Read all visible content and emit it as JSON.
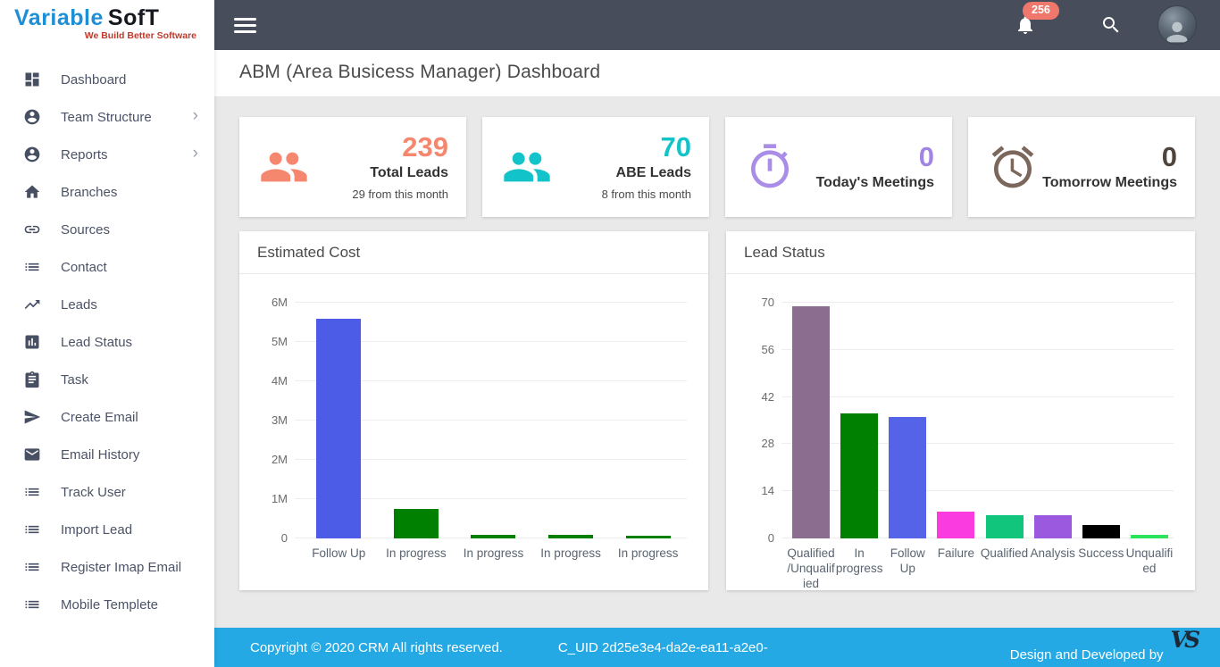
{
  "brand": {
    "name_part1": "Variable",
    "name_part2": "SofT",
    "tagline": "We Build Better Software"
  },
  "header": {
    "notification_count": "256"
  },
  "page": {
    "title": "ABM (Area Busicess Manager) Dashboard"
  },
  "sidebar": {
    "items": [
      {
        "label": "Dashboard",
        "icon": "dashboard-grid-icon",
        "has_submenu": false
      },
      {
        "label": "Team Structure",
        "icon": "person-circle-icon",
        "has_submenu": true
      },
      {
        "label": "Reports",
        "icon": "person-circle-icon",
        "has_submenu": true
      },
      {
        "label": "Branches",
        "icon": "home-icon",
        "has_submenu": false
      },
      {
        "label": "Sources",
        "icon": "link-icon",
        "has_submenu": false
      },
      {
        "label": "Contact",
        "icon": "list-icon",
        "has_submenu": false
      },
      {
        "label": "Leads",
        "icon": "trending-up-icon",
        "has_submenu": false
      },
      {
        "label": "Lead Status",
        "icon": "bar-chart-icon",
        "has_submenu": false
      },
      {
        "label": "Task",
        "icon": "clipboard-icon",
        "has_submenu": false
      },
      {
        "label": "Create Email",
        "icon": "send-icon",
        "has_submenu": false
      },
      {
        "label": "Email History",
        "icon": "envelope-icon",
        "has_submenu": false
      },
      {
        "label": "Track User",
        "icon": "list-icon",
        "has_submenu": false
      },
      {
        "label": "Import Lead",
        "icon": "list-icon",
        "has_submenu": false
      },
      {
        "label": "Register Imap Email",
        "icon": "list-icon",
        "has_submenu": false
      },
      {
        "label": "Mobile Templete",
        "icon": "list-icon",
        "has_submenu": false
      }
    ]
  },
  "stat_cards": [
    {
      "value": "239",
      "label": "Total Leads",
      "sublabel": "29 from this month",
      "icon": "people-icon",
      "icon_color": "#f5876f",
      "value_color": "#f5876f"
    },
    {
      "value": "70",
      "label": "ABE Leads",
      "sublabel": "8 from this month",
      "icon": "people-icon",
      "icon_color": "#13c3ca",
      "value_color": "#13c3ca"
    },
    {
      "value": "0",
      "label": "Today's Meetings",
      "sublabel": "",
      "icon": "stopwatch-icon",
      "icon_color": "#a98de7",
      "value_color": "#a284e3"
    },
    {
      "value": "0",
      "label": "Tomorrow Meetings",
      "sublabel": "",
      "icon": "alarm-clock-icon",
      "icon_color": "#7b675b",
      "value_color": "#4e443c"
    }
  ],
  "chart_data": [
    {
      "type": "bar",
      "title": "Estimated Cost",
      "categories": [
        "Follow Up",
        "In progress",
        "In progress",
        "In progress",
        "In progress"
      ],
      "values": [
        5600000,
        750000,
        80000,
        90000,
        40000
      ],
      "bar_colors": [
        "#4d5ce6",
        "#008000",
        "#008000",
        "#008000",
        "#008000"
      ],
      "xlabel": "",
      "ylabel": "",
      "ylim": [
        0,
        6000000
      ],
      "ytick_step": 1000000,
      "ytick_labels": [
        "0",
        "1M",
        "2M",
        "3M",
        "4M",
        "5M",
        "6M"
      ],
      "grid": true,
      "legend": "none"
    },
    {
      "type": "bar",
      "title": "Lead Status",
      "categories": [
        "Qualified/Unqualified",
        "In progress",
        "Follow Up",
        "Failure",
        "Qualified",
        "Analysis",
        "Success",
        "Unqualified"
      ],
      "values": [
        69,
        37,
        36,
        8,
        7,
        7,
        4,
        1
      ],
      "bar_colors": [
        "#8b6d8f",
        "#008000",
        "#5463e8",
        "#fa3be0",
        "#12c57c",
        "#9b59e0",
        "#000000",
        "#2ce45c"
      ],
      "xlabel": "",
      "ylabel": "",
      "ylim": [
        0,
        70
      ],
      "ytick_step": 14,
      "ytick_labels": [
        "0",
        "14",
        "28",
        "42",
        "56",
        "70"
      ],
      "grid": true,
      "legend": "none"
    }
  ],
  "footer": {
    "copyright": "Copyright © 2020 CRM All rights reserved.",
    "uid": "C_UID 2d25e3e4-da2e-ea11-a2e0-",
    "credit": "Design and Developed by",
    "logo_monogram": "VS"
  },
  "colors": {
    "topbar_bg": "#474d5b",
    "footer_bg": "#24a9e4",
    "badge_bg": "#ef776b",
    "content_bg": "#e9e9e9"
  }
}
